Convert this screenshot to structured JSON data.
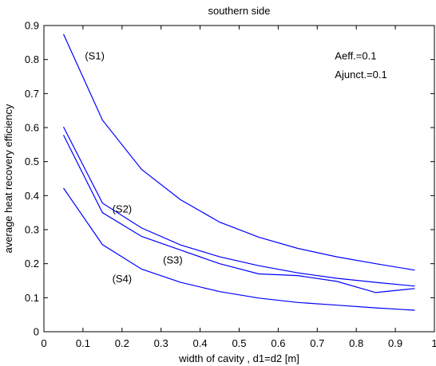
{
  "chart_data": {
    "type": "line",
    "title": "southern side",
    "xlabel": "width of cavity , d1=d2 [m]",
    "ylabel": "average heat recovery  efficiency",
    "xlim": [
      0,
      1
    ],
    "ylim": [
      0,
      0.9
    ],
    "xticks": [
      0,
      0.1,
      0.2,
      0.3,
      0.4,
      0.5,
      0.6,
      0.7,
      0.8,
      0.9,
      1
    ],
    "xtick_labels": [
      "0",
      "0.1",
      "0.2",
      "0.3",
      "0.4",
      "0.5",
      "0.6",
      "0.7",
      "0.8",
      "0.9",
      "1"
    ],
    "yticks": [
      0,
      0.1,
      0.2,
      0.3,
      0.4,
      0.5,
      0.6,
      0.7,
      0.8,
      0.9
    ],
    "ytick_labels": [
      "0",
      "0.1",
      "0.2",
      "0.3",
      "0.4",
      "0.5",
      "0.6",
      "0.7",
      "0.8",
      "0.9"
    ],
    "grid": false,
    "line_color": "#0000ff",
    "x": [
      0.05,
      0.15,
      0.25,
      0.35,
      0.45,
      0.55,
      0.65,
      0.75,
      0.85,
      0.95
    ],
    "series": [
      {
        "name": "(S1)",
        "values": [
          0.875,
          0.622,
          0.477,
          0.388,
          0.322,
          0.278,
          0.245,
          0.22,
          0.2,
          0.181
        ]
      },
      {
        "name": "(S2)",
        "values": [
          0.602,
          0.378,
          0.305,
          0.255,
          0.22,
          0.194,
          0.173,
          0.157,
          0.145,
          0.134
        ]
      },
      {
        "name": "(S3)",
        "values": [
          0.578,
          0.35,
          0.28,
          0.24,
          0.2,
          0.17,
          0.165,
          0.148,
          0.115,
          0.127
        ]
      },
      {
        "name": "(S4)",
        "values": [
          0.422,
          0.256,
          0.184,
          0.145,
          0.118,
          0.099,
          0.086,
          0.078,
          0.07,
          0.063
        ]
      }
    ],
    "labels": [
      {
        "text": "(S1)",
        "x": 0.105,
        "y": 0.8
      },
      {
        "text": "(S2)",
        "x": 0.175,
        "y": 0.35
      },
      {
        "text": "(S3)",
        "x": 0.305,
        "y": 0.2
      },
      {
        "text": "(S4)",
        "x": 0.175,
        "y": 0.145
      }
    ],
    "annotations": [
      {
        "text": "Aeff.=0.1",
        "x": 0.745,
        "y": 0.8
      },
      {
        "text": "Ajunct.=0.1",
        "x": 0.745,
        "y": 0.745
      }
    ]
  }
}
